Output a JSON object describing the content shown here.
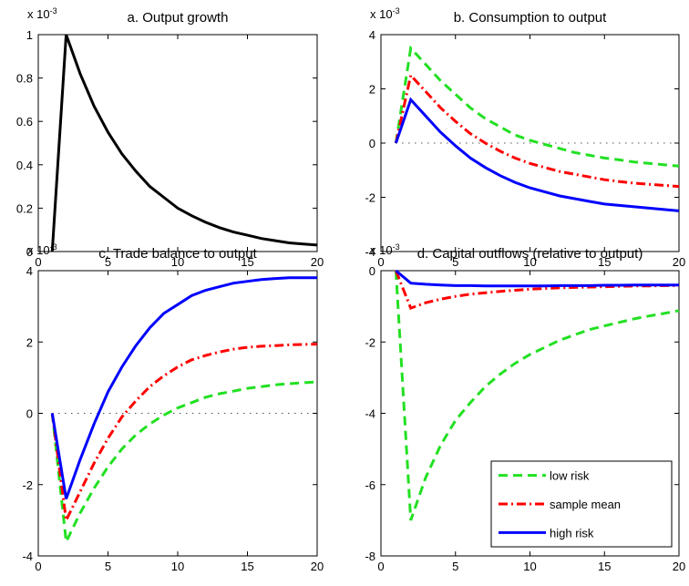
{
  "chart_data": [
    {
      "type": "line",
      "title": "a. Output growth",
      "scale_label": "x 10",
      "scale_exponent": "-3",
      "x": [
        1,
        2,
        3,
        4,
        5,
        6,
        7,
        8,
        9,
        10,
        11,
        12,
        13,
        14,
        15,
        16,
        17,
        18,
        19,
        20
      ],
      "series": [
        {
          "color": "#000000",
          "dash": "solid",
          "values": [
            0,
            1,
            0.82,
            0.67,
            0.55,
            0.45,
            0.37,
            0.3,
            0.25,
            0.2,
            0.165,
            0.135,
            0.11,
            0.09,
            0.075,
            0.06,
            0.05,
            0.04,
            0.035,
            0.03
          ]
        }
      ],
      "xlim": [
        0,
        20
      ],
      "xticks": [
        0,
        5,
        10,
        15,
        20
      ],
      "ylim": [
        0,
        1
      ],
      "yticks": [
        0,
        0.2,
        0.4,
        0.6,
        0.8,
        1
      ]
    },
    {
      "type": "line",
      "title": "b. Consumption to output",
      "scale_label": "x 10",
      "scale_exponent": "-3",
      "zero_line": true,
      "x": [
        1,
        2,
        3,
        4,
        5,
        6,
        7,
        8,
        9,
        10,
        11,
        12,
        13,
        14,
        15,
        16,
        17,
        18,
        19,
        20
      ],
      "series": [
        {
          "color": "#22e022",
          "dash": "dashed",
          "values": [
            0,
            3.5,
            2.9,
            2.3,
            1.8,
            1.3,
            0.9,
            0.6,
            0.3,
            0.1,
            -0.05,
            -0.2,
            -0.35,
            -0.45,
            -0.55,
            -0.62,
            -0.7,
            -0.75,
            -0.8,
            -0.85
          ]
        },
        {
          "color": "#ff0000",
          "dash": "dashdot",
          "values": [
            0,
            2.5,
            1.9,
            1.3,
            0.8,
            0.35,
            0,
            -0.3,
            -0.55,
            -0.75,
            -0.9,
            -1.05,
            -1.15,
            -1.25,
            -1.35,
            -1.42,
            -1.48,
            -1.52,
            -1.56,
            -1.6
          ]
        },
        {
          "color": "#0000ff",
          "dash": "solid",
          "values": [
            0,
            1.6,
            1.0,
            0.4,
            -0.1,
            -0.55,
            -0.9,
            -1.2,
            -1.45,
            -1.65,
            -1.8,
            -1.95,
            -2.05,
            -2.15,
            -2.25,
            -2.3,
            -2.35,
            -2.4,
            -2.45,
            -2.5
          ]
        }
      ],
      "xlim": [
        0,
        20
      ],
      "xticks": [
        0,
        5,
        10,
        15,
        20
      ],
      "ylim": [
        -4,
        4
      ],
      "yticks": [
        -4,
        -2,
        0,
        2,
        4
      ]
    },
    {
      "type": "line",
      "title": "c. Trade balance to output",
      "scale_label": "x 10",
      "scale_exponent": "-3",
      "zero_line": true,
      "x": [
        1,
        2,
        3,
        4,
        5,
        6,
        7,
        8,
        9,
        10,
        11,
        12,
        13,
        14,
        15,
        16,
        17,
        18,
        19,
        20
      ],
      "series": [
        {
          "color": "#22e022",
          "dash": "dashed",
          "values": [
            0,
            -3.6,
            -2.8,
            -2.1,
            -1.5,
            -1.0,
            -0.6,
            -0.3,
            -0.05,
            0.15,
            0.3,
            0.45,
            0.55,
            0.62,
            0.7,
            0.75,
            0.8,
            0.83,
            0.86,
            0.88
          ]
        },
        {
          "color": "#ff0000",
          "dash": "dashdot",
          "values": [
            0,
            -3.0,
            -2.2,
            -1.4,
            -0.7,
            -0.1,
            0.35,
            0.75,
            1.05,
            1.3,
            1.5,
            1.62,
            1.72,
            1.8,
            1.85,
            1.88,
            1.9,
            1.92,
            1.93,
            1.94
          ]
        },
        {
          "color": "#0000ff",
          "dash": "solid",
          "values": [
            0,
            -2.4,
            -1.3,
            -0.3,
            0.6,
            1.3,
            1.9,
            2.4,
            2.8,
            3.05,
            3.3,
            3.45,
            3.55,
            3.65,
            3.7,
            3.75,
            3.78,
            3.8,
            3.8,
            3.8
          ]
        }
      ],
      "xlim": [
        0,
        20
      ],
      "xticks": [
        0,
        5,
        10,
        15,
        20
      ],
      "ylim": [
        -4,
        4
      ],
      "yticks": [
        -4,
        -2,
        0,
        2,
        4
      ]
    },
    {
      "type": "line",
      "title": "d. Capital outflows (relative to output)",
      "scale_label": "x 10",
      "scale_exponent": "-3",
      "legend": "lower right",
      "x": [
        1,
        2,
        3,
        4,
        5,
        6,
        7,
        8,
        9,
        10,
        11,
        12,
        13,
        14,
        15,
        16,
        17,
        18,
        19,
        20
      ],
      "series": [
        {
          "name": "low risk",
          "color": "#22e022",
          "dash": "dashed",
          "values": [
            0,
            -7.0,
            -5.8,
            -4.9,
            -4.2,
            -3.7,
            -3.25,
            -2.9,
            -2.6,
            -2.35,
            -2.15,
            -1.95,
            -1.8,
            -1.65,
            -1.55,
            -1.45,
            -1.35,
            -1.27,
            -1.2,
            -1.12
          ]
        },
        {
          "name": "sample mean",
          "color": "#ff0000",
          "dash": "dashdot",
          "values": [
            0,
            -1.05,
            -0.9,
            -0.8,
            -0.72,
            -0.66,
            -0.62,
            -0.58,
            -0.55,
            -0.52,
            -0.5,
            -0.48,
            -0.47,
            -0.46,
            -0.45,
            -0.44,
            -0.43,
            -0.43,
            -0.42,
            -0.42
          ]
        },
        {
          "name": "high risk",
          "color": "#0000ff",
          "dash": "solid",
          "values": [
            0,
            -0.35,
            -0.38,
            -0.4,
            -0.42,
            -0.42,
            -0.43,
            -0.43,
            -0.43,
            -0.43,
            -0.43,
            -0.42,
            -0.42,
            -0.42,
            -0.41,
            -0.41,
            -0.4,
            -0.4,
            -0.4,
            -0.4
          ]
        }
      ],
      "xlim": [
        0,
        20
      ],
      "xticks": [
        0,
        5,
        10,
        15,
        20
      ],
      "ylim": [
        -8,
        0
      ],
      "yticks": [
        -8,
        -6,
        -4,
        -2,
        0
      ]
    }
  ]
}
